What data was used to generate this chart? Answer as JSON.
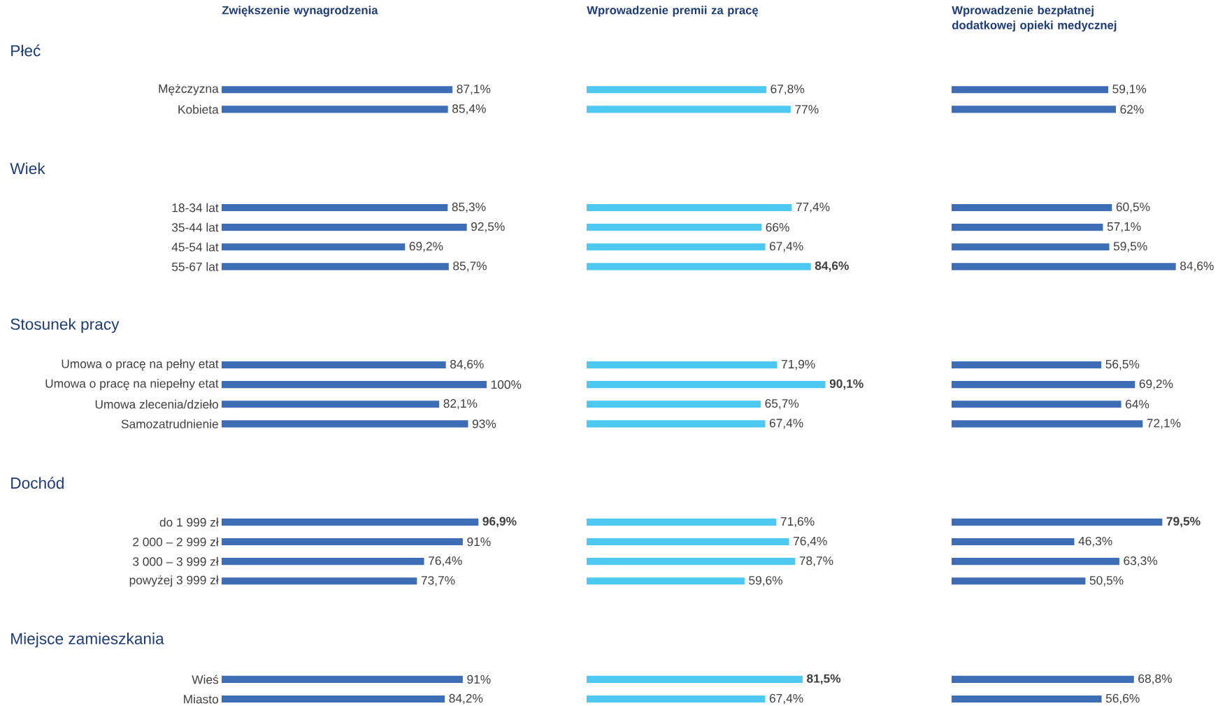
{
  "chart_data": [
    {
      "type": "bar",
      "orientation": "horizontal",
      "title": "Zwiększenie wynagrodzenia",
      "color": "#3d6db5",
      "xlim": [
        0,
        100
      ],
      "tick_labels": "y",
      "annotations": [
        "Płeć",
        "Wiek",
        "Stosunek pracy",
        "Dochód",
        "Miejsce zamieszkania"
      ],
      "categories": [
        null,
        null,
        "Mężczyzna",
        "Kobieta",
        null,
        null,
        null,
        null,
        "18-34 lat",
        "35-44 lat",
        "45-54 lat",
        "55-67 lat",
        null,
        null,
        null,
        null,
        "Umowa o pracę na pełny etat",
        "Umowa o pracę na niepełny etat",
        "Umowa zlecenia/dzieło",
        "Samozatrudnienie",
        null,
        null,
        null,
        null,
        "do 1 999 zł",
        "2 000 – 2 999 zł",
        "3 000 – 3 999 zł",
        "powyżej 3 999 zł",
        null,
        null,
        null,
        null,
        "Wieś",
        "Miasto"
      ],
      "values": [
        null,
        null,
        87.1,
        85.4,
        null,
        null,
        null,
        null,
        85.3,
        92.5,
        69.2,
        85.7,
        null,
        null,
        null,
        null,
        84.6,
        100,
        82.1,
        93,
        null,
        null,
        null,
        null,
        96.9,
        91,
        76.4,
        73.7,
        null,
        null,
        null,
        null,
        91,
        84.2
      ],
      "value_labels": [
        null,
        null,
        "87,1%",
        "85,4%",
        null,
        null,
        null,
        null,
        "85,3%",
        "92,5%",
        "69,2%",
        "85,7%",
        null,
        null,
        null,
        null,
        "84,6%",
        "100%",
        "82,1%",
        "93%",
        null,
        null,
        null,
        null,
        "**96,9%**",
        "91%",
        "76,4%",
        "73,7%",
        null,
        null,
        null,
        null,
        "91%",
        "84,2%"
      ]
    },
    {
      "type": "bar",
      "orientation": "horizontal",
      "title": "Wprowadzenie premii za pracę",
      "color": "#4dc8f0",
      "tick_labels": false,
      "categories": [
        null,
        null,
        null,
        null,
        null,
        null,
        null,
        null,
        null,
        null,
        null,
        null,
        null,
        null,
        null,
        null,
        null,
        null,
        null,
        null,
        null,
        null,
        null,
        null,
        null,
        null,
        null,
        null,
        null,
        null,
        null,
        null,
        null,
        null
      ],
      "values": [
        null,
        null,
        67.8,
        77,
        null,
        null,
        null,
        null,
        77.4,
        66,
        67.4,
        84.6,
        null,
        null,
        null,
        null,
        71.9,
        90.1,
        65.7,
        67.4,
        null,
        null,
        null,
        null,
        71.6,
        76.4,
        78.7,
        59.6,
        null,
        null,
        null,
        null,
        81.5,
        67.4
      ],
      "value_labels": [
        null,
        null,
        "67,8%",
        "77%",
        null,
        null,
        null,
        null,
        "77,4%",
        "66%",
        "67,4%",
        "**84,6%**",
        null,
        null,
        null,
        null,
        "71,9%",
        "**90,1%**",
        "65,7%",
        "67,4%",
        null,
        null,
        null,
        null,
        "71,6%",
        "76,4%",
        "78,7%",
        "59,6%",
        null,
        null,
        null,
        null,
        "**81,5%**",
        "67,4%"
      ]
    },
    {
      "type": "bar",
      "orientation": "horizontal",
      "title": "Wprowadzenie bezpłatnej dodatkowej opieki medycznej",
      "color": "#3d6db5",
      "tick_labels": false,
      "categories": [
        null,
        null,
        null,
        null,
        null,
        null,
        null,
        null,
        null,
        null,
        null,
        null,
        null,
        null,
        null,
        null,
        null,
        null,
        null,
        null,
        null,
        null,
        null,
        null,
        null,
        null,
        null,
        null,
        null,
        null,
        null,
        null,
        null,
        null
      ],
      "values": [
        null,
        null,
        59.1,
        62,
        null,
        null,
        null,
        null,
        60.5,
        57.1,
        59.5,
        84.6,
        null,
        null,
        null,
        null,
        56.5,
        69.2,
        64,
        72.1,
        null,
        null,
        null,
        null,
        79.5,
        46.3,
        63.3,
        50.5,
        null,
        null,
        null,
        null,
        68.8,
        56.6
      ],
      "value_labels": [
        null,
        null,
        "59,1%",
        "62%",
        null,
        null,
        null,
        null,
        "60,5%",
        "57,1%",
        "59,5%",
        "84,6%",
        null,
        null,
        null,
        null,
        "56,5%",
        "69,2%",
        "64%",
        "72,1%",
        null,
        null,
        null,
        null,
        "**79,5%**",
        "46,3%",
        "63,3%",
        "50,5%",
        null,
        null,
        null,
        null,
        "68,8%",
        "56,6%"
      ]
    }
  ]
}
